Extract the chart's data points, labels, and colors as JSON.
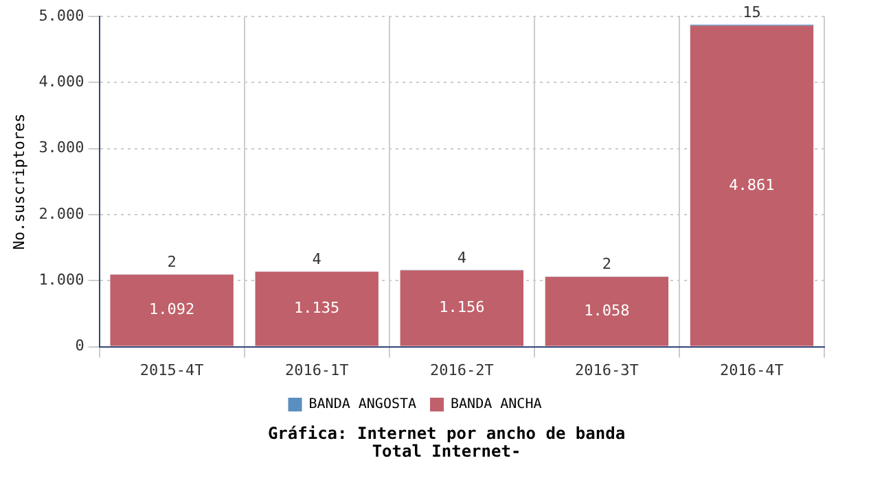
{
  "chart_data": {
    "type": "bar",
    "title": "Gráfica: Internet por ancho de banda",
    "subtitle": "Total Internet-",
    "ylabel": "No.suscriptores",
    "categories": [
      "2015-4T",
      "2016-1T",
      "2016-2T",
      "2016-3T",
      "2016-4T"
    ],
    "stacked": true,
    "series": [
      {
        "name": "BANDA ANCHA",
        "color": "#c0606a",
        "values": [
          1092,
          1135,
          1156,
          1058,
          4861
        ],
        "value_labels": [
          "1.092",
          "1.135",
          "1.156",
          "1.058",
          "4.861"
        ]
      },
      {
        "name": "BANDA ANGOSTA",
        "color": "#5b8ec1",
        "values": [
          2,
          4,
          4,
          2,
          15
        ],
        "value_labels": [
          "2",
          "4",
          "4",
          "2",
          "15"
        ]
      }
    ],
    "ylim": [
      0,
      5000
    ],
    "yticks": [
      {
        "value": 0,
        "label": "0"
      },
      {
        "value": 1000,
        "label": "1.000"
      },
      {
        "value": 2000,
        "label": "2.000"
      },
      {
        "value": 3000,
        "label": "3.000"
      },
      {
        "value": 4000,
        "label": "4.000"
      },
      {
        "value": 5000,
        "label": "5.000"
      }
    ],
    "grid": true,
    "legend": "bottom"
  }
}
